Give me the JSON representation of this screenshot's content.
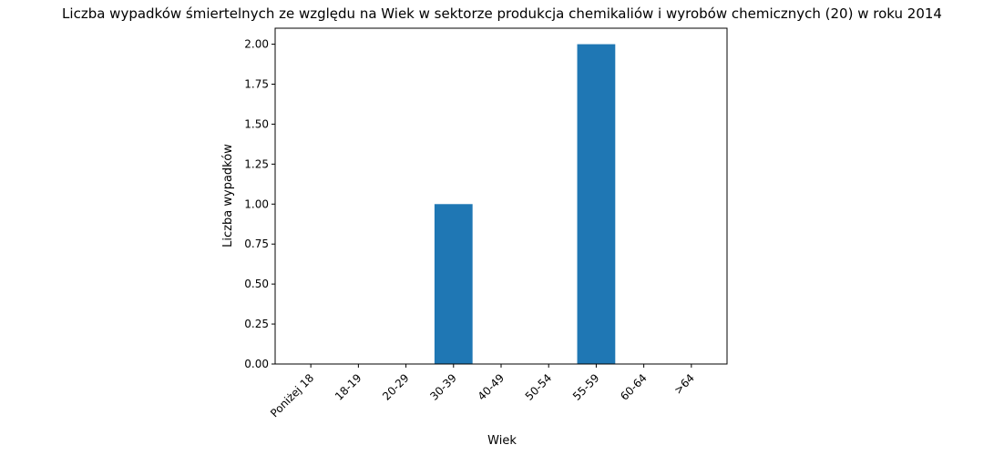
{
  "chart_data": {
    "type": "bar",
    "title": "Liczba wypadków śmiertelnych ze względu na Wiek w sektorze produkcja chemikaliów i wyrobów  chemicznych (20) w roku 2014",
    "xlabel": "Wiek",
    "ylabel": "Liczba wypadków",
    "categories": [
      "Poniżej 18",
      "18-19",
      "20-29",
      "30-39",
      "40-49",
      "50-54",
      "55-59",
      "60-64",
      ">64"
    ],
    "values": [
      0,
      0,
      0,
      1,
      0,
      0,
      2,
      0,
      0
    ],
    "ylim": [
      0,
      2.1
    ],
    "yticks": [
      "0.00",
      "0.25",
      "0.50",
      "0.75",
      "1.00",
      "1.25",
      "1.50",
      "1.75",
      "2.00"
    ],
    "bar_color": "#1f77b4",
    "grid": false,
    "legend": "none"
  }
}
